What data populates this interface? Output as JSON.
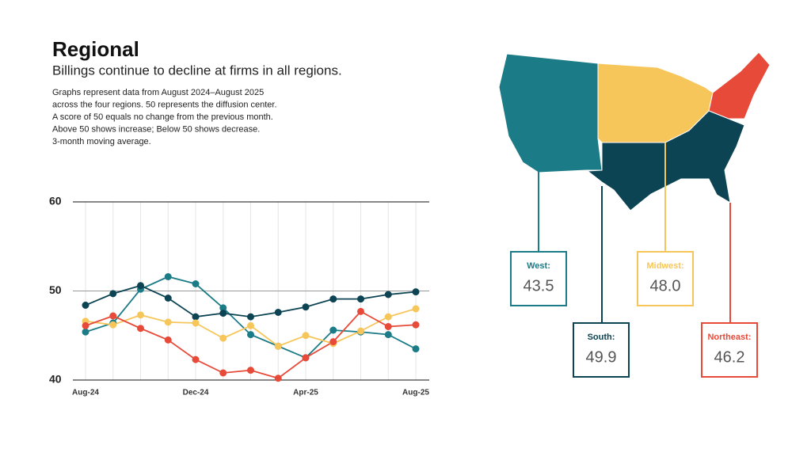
{
  "chart_data": {
    "type": "line",
    "title": "Regional",
    "subtitle": "Billings continue to decline at firms in all regions.",
    "notes": [
      "Graphs represent data from August 2024–August 2025",
      "across the four regions. 50 represents the diffusion center.",
      "A score of 50 equals no change from the previous month.",
      "Above 50 shows increase; Below 50 shows decrease.",
      "3-month moving average."
    ],
    "categories": [
      "Aug-24",
      null,
      null,
      null,
      "Dec-24",
      null,
      null,
      null,
      "Apr-25",
      null,
      null,
      null,
      "Aug-25"
    ],
    "ylim": [
      40,
      60
    ],
    "yticks": [
      40,
      50,
      60
    ],
    "grid": true,
    "series": [
      {
        "name": "West:",
        "color": "#1b7b86",
        "label_value": "43.5",
        "values": [
          45.4,
          46.4,
          50.2,
          51.6,
          50.8,
          48.1,
          45.1,
          43.8,
          42.5,
          45.6,
          45.4,
          45.1,
          43.5
        ]
      },
      {
        "name": "South:",
        "color": "#0d4454",
        "label_value": "49.9",
        "values": [
          48.4,
          49.7,
          50.6,
          49.2,
          47.1,
          47.5,
          47.1,
          47.6,
          48.2,
          49.1,
          49.1,
          49.6,
          49.9
        ]
      },
      {
        "name": "Midwest:",
        "color": "#f7c65a",
        "label_value": "48.0",
        "values": [
          46.6,
          46.2,
          47.3,
          46.5,
          46.4,
          44.7,
          46.1,
          43.8,
          45.0,
          44.1,
          45.5,
          47.1,
          48.0
        ]
      },
      {
        "name": "Northeast:",
        "color": "#e84a3a",
        "label_value": "46.2",
        "values": [
          46.1,
          47.2,
          45.8,
          44.5,
          42.3,
          40.8,
          41.1,
          40.2,
          42.5,
          44.3,
          47.7,
          46.0,
          46.2
        ]
      }
    ]
  }
}
